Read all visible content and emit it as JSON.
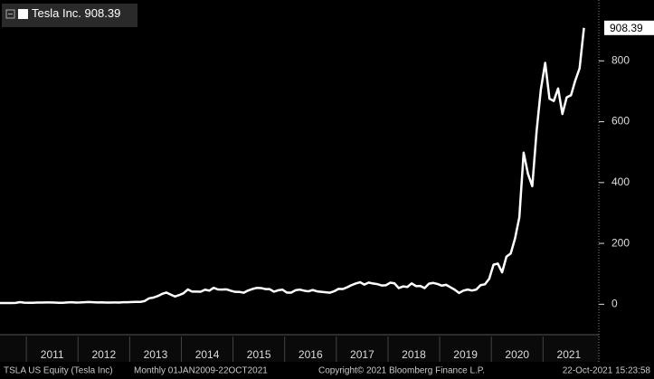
{
  "chart_data": {
    "type": "line",
    "legend_position": "top-left",
    "footer": {
      "security": "TSLA US Equity (Tesla Inc)",
      "period": "Monthly 01JAN2009-22OCT2021",
      "copyright": "Copyright© 2021 Bloomberg Finance L.P.",
      "timestamp": "22-Oct-2021 15:23:58"
    },
    "xlim": [
      2010.49,
      2022.08
    ],
    "xticks": [
      {
        "value": 2011.5,
        "label": "2011"
      },
      {
        "value": 2012.5,
        "label": "2012"
      },
      {
        "value": 2013.5,
        "label": "2013"
      },
      {
        "value": 2014.5,
        "label": "2014"
      },
      {
        "value": 2015.5,
        "label": "2015"
      },
      {
        "value": 2016.5,
        "label": "2016"
      },
      {
        "value": 2017.5,
        "label": "2017"
      },
      {
        "value": 2018.5,
        "label": "2018"
      },
      {
        "value": 2019.5,
        "label": "2019"
      },
      {
        "value": 2020.5,
        "label": "2020"
      },
      {
        "value": 2021.5,
        "label": "2021"
      }
    ],
    "ylim": [
      -100,
      1000
    ],
    "yticks": [
      0,
      200,
      400,
      600,
      800
    ],
    "x": [
      2010.458,
      2010.542,
      2010.625,
      2010.708,
      2010.792,
      2010.875,
      2010.958,
      2011.042,
      2011.125,
      2011.208,
      2011.292,
      2011.375,
      2011.458,
      2011.542,
      2011.625,
      2011.708,
      2011.792,
      2011.875,
      2011.958,
      2012.042,
      2012.125,
      2012.208,
      2012.292,
      2012.375,
      2012.458,
      2012.542,
      2012.625,
      2012.708,
      2012.792,
      2012.875,
      2012.958,
      2013.042,
      2013.125,
      2013.208,
      2013.292,
      2013.375,
      2013.458,
      2013.542,
      2013.625,
      2013.708,
      2013.792,
      2013.875,
      2013.958,
      2014.042,
      2014.125,
      2014.208,
      2014.292,
      2014.375,
      2014.458,
      2014.542,
      2014.625,
      2014.708,
      2014.792,
      2014.875,
      2014.958,
      2015.042,
      2015.125,
      2015.208,
      2015.292,
      2015.375,
      2015.458,
      2015.542,
      2015.625,
      2015.708,
      2015.792,
      2015.875,
      2015.958,
      2016.042,
      2016.125,
      2016.208,
      2016.292,
      2016.375,
      2016.458,
      2016.542,
      2016.625,
      2016.708,
      2016.792,
      2016.875,
      2016.958,
      2017.042,
      2017.125,
      2017.208,
      2017.292,
      2017.375,
      2017.458,
      2017.542,
      2017.625,
      2017.708,
      2017.792,
      2017.875,
      2017.958,
      2018.042,
      2018.125,
      2018.208,
      2018.292,
      2018.375,
      2018.458,
      2018.542,
      2018.625,
      2018.708,
      2018.792,
      2018.875,
      2018.958,
      2019.042,
      2019.125,
      2019.208,
      2019.292,
      2019.375,
      2019.458,
      2019.542,
      2019.625,
      2019.708,
      2019.792,
      2019.875,
      2019.958,
      2020.042,
      2020.125,
      2020.208,
      2020.292,
      2020.375,
      2020.458,
      2020.542,
      2020.625,
      2020.708,
      2020.792,
      2020.875,
      2020.958,
      2021.042,
      2021.125,
      2021.208,
      2021.292,
      2021.375,
      2021.458,
      2021.542,
      2021.625,
      2021.708,
      2021.792
    ],
    "series": [
      {
        "name": "Tesla Inc.",
        "color": "#ffffff",
        "values": [
          4.2,
          4.0,
          3.9,
          4.1,
          4.4,
          7.0,
          5.3,
          4.8,
          4.8,
          5.5,
          5.4,
          6.0,
          5.9,
          5.7,
          4.9,
          4.9,
          5.9,
          6.5,
          5.7,
          5.9,
          6.7,
          7.4,
          6.6,
          5.9,
          6.3,
          5.5,
          5.7,
          5.9,
          5.6,
          6.8,
          6.8,
          7.5,
          7.6,
          7.6,
          10.8,
          19.5,
          21.9,
          26.9,
          33.8,
          38.6,
          32.0,
          25.5,
          30.1,
          36.2,
          48.6,
          41.7,
          41.6,
          41.3,
          48.0,
          44.7,
          54.0,
          48.6,
          48.3,
          48.9,
          44.5,
          40.7,
          40.6,
          37.8,
          45.3,
          50.1,
          53.7,
          53.3,
          49.9,
          49.7,
          41.4,
          46.0,
          48.0,
          38.2,
          38.3,
          45.9,
          48.1,
          44.7,
          42.5,
          46.8,
          42.4,
          40.8,
          39.5,
          37.9,
          42.7,
          50.4,
          50.0,
          55.7,
          62.8,
          68.2,
          72.3,
          64.7,
          71.3,
          68.2,
          66.2,
          61.7,
          62.3,
          70.9,
          68.6,
          53.2,
          58.6,
          56.8,
          68.6,
          59.6,
          60.3,
          53.0,
          67.5,
          70.1,
          66.6,
          61.2,
          63.9,
          56.0,
          47.7,
          37.0,
          44.7,
          48.3,
          45.1,
          48.2,
          62.9,
          65.6,
          83.7,
          130.1,
          133.6,
          104.8,
          156.4,
          167.0,
          215.9,
          286.2,
          498.3,
          429.0,
          388.0,
          567.6,
          705.7,
          793.5,
          675.5,
          667.9,
          709.4,
          625.2,
          680.0,
          687.2,
          735.7,
          775.5,
          908.39
        ]
      }
    ]
  }
}
